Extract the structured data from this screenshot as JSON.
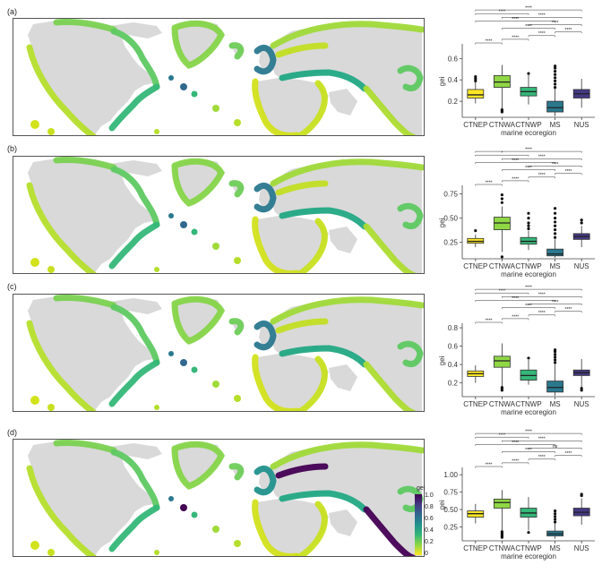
{
  "figure": {
    "panel_labels": [
      "(a)",
      "(b)",
      "(c)",
      "(d)"
    ],
    "legend": {
      "title": "gei",
      "ticks": [
        "1.0",
        "0.8",
        "0.6",
        "0.4",
        "0.2",
        "0"
      ]
    },
    "colors": {
      "CTNEP": "#fde725",
      "CTNWA": "#8fd744",
      "CTNWP": "#35b779",
      "MS": "#2a788e",
      "NUS": "#443983",
      "land": "#d9d9d9"
    }
  },
  "chart_data": [
    {
      "type": "box",
      "panel": "(a)",
      "xlabel": "marine ecoregion",
      "ylabel": "gei",
      "ylim": [
        0.05,
        0.72
      ],
      "yticks": [
        0.2,
        0.4,
        0.6
      ],
      "ytick_labels": [
        "0.2",
        "0.4",
        "0.6"
      ],
      "categories": [
        "CTNEP",
        "CTNWA",
        "CTNWP",
        "MS",
        "NUS"
      ],
      "boxes": [
        {
          "name": "CTNEP",
          "min": 0.18,
          "q1": 0.23,
          "median": 0.26,
          "q3": 0.31,
          "max": 0.38,
          "outliers": [
            0.39,
            0.41,
            0.43
          ]
        },
        {
          "name": "CTNWA",
          "min": 0.13,
          "q1": 0.33,
          "median": 0.38,
          "q3": 0.44,
          "max": 0.54,
          "outliers": [
            0.1,
            0.11,
            0.12
          ]
        },
        {
          "name": "CTNWP",
          "min": 0.17,
          "q1": 0.25,
          "median": 0.29,
          "q3": 0.33,
          "max": 0.45,
          "outliers": [
            0.46
          ]
        },
        {
          "name": "MS",
          "min": 0.06,
          "q1": 0.1,
          "median": 0.14,
          "q3": 0.2,
          "max": 0.32,
          "outliers": [
            0.33,
            0.36,
            0.39,
            0.42,
            0.45,
            0.48,
            0.51,
            0.53
          ]
        },
        {
          "name": "NUS",
          "min": 0.14,
          "q1": 0.23,
          "median": 0.27,
          "q3": 0.31,
          "max": 0.41,
          "outliers": []
        }
      ],
      "comparisons": [
        {
          "a": 0,
          "b": 1,
          "label": "****"
        },
        {
          "a": 1,
          "b": 2,
          "label": "****"
        },
        {
          "a": 2,
          "b": 3,
          "label": "****"
        },
        {
          "a": 3,
          "b": 4,
          "label": "****"
        },
        {
          "a": 1,
          "b": 3,
          "label": "****"
        },
        {
          "a": 2,
          "b": 4,
          "label": "****"
        },
        {
          "a": 0,
          "b": 3,
          "label": "****"
        },
        {
          "a": 1,
          "b": 4,
          "label": "****"
        },
        {
          "a": 0,
          "b": 2,
          "label": "****"
        },
        {
          "a": 0,
          "b": 4,
          "label": "****"
        }
      ]
    },
    {
      "type": "box",
      "panel": "(b)",
      "xlabel": "marine ecoregion",
      "ylabel": "gei",
      "ylim": [
        0.08,
        0.82
      ],
      "yticks": [
        0.25,
        0.5,
        0.75
      ],
      "ytick_labels": [
        "0.25",
        "0.50",
        "0.75"
      ],
      "categories": [
        "CTNEP",
        "CTNWA",
        "CTNWP",
        "MS",
        "NUS"
      ],
      "boxes": [
        {
          "name": "CTNEP",
          "min": 0.2,
          "q1": 0.24,
          "median": 0.26,
          "q3": 0.29,
          "max": 0.33,
          "outliers": [
            0.37
          ]
        },
        {
          "name": "CTNWA",
          "min": 0.15,
          "q1": 0.38,
          "median": 0.45,
          "q3": 0.51,
          "max": 0.62,
          "outliers": [
            0.1,
            0.66,
            0.7,
            0.74
          ]
        },
        {
          "name": "CTNWP",
          "min": 0.17,
          "q1": 0.23,
          "median": 0.26,
          "q3": 0.3,
          "max": 0.37,
          "outliers": [
            0.39,
            0.42,
            0.45,
            0.5,
            0.55
          ]
        },
        {
          "name": "MS",
          "min": 0.09,
          "q1": 0.11,
          "median": 0.13,
          "q3": 0.18,
          "max": 0.28,
          "outliers": [
            0.3,
            0.34,
            0.38,
            0.42,
            0.46,
            0.5,
            0.55,
            0.6
          ]
        },
        {
          "name": "NUS",
          "min": 0.2,
          "q1": 0.28,
          "median": 0.31,
          "q3": 0.34,
          "max": 0.42,
          "outliers": [
            0.45,
            0.48
          ]
        }
      ],
      "comparisons": [
        {
          "a": 0,
          "b": 1,
          "label": "****"
        },
        {
          "a": 1,
          "b": 2,
          "label": "****"
        },
        {
          "a": 2,
          "b": 3,
          "label": "****"
        },
        {
          "a": 3,
          "b": 4,
          "label": "****"
        },
        {
          "a": 1,
          "b": 3,
          "label": "****"
        },
        {
          "a": 2,
          "b": 4,
          "label": "****"
        },
        {
          "a": 0,
          "b": 3,
          "label": "****"
        },
        {
          "a": 1,
          "b": 4,
          "label": "****"
        },
        {
          "a": 0,
          "b": 2,
          "label": "*"
        },
        {
          "a": 0,
          "b": 4,
          "label": "****"
        }
      ]
    },
    {
      "type": "box",
      "panel": "(c)",
      "xlabel": "marine ecoregion",
      "ylabel": "gei",
      "ylim": [
        0.05,
        0.83
      ],
      "yticks": [
        0.2,
        0.4,
        0.6,
        0.8
      ],
      "ytick_labels": [
        "0.2",
        "0.4",
        "0.6",
        "0.8"
      ],
      "categories": [
        "CTNEP",
        "CTNWA",
        "CTNWP",
        "MS",
        "NUS"
      ],
      "boxes": [
        {
          "name": "CTNEP",
          "min": 0.2,
          "q1": 0.27,
          "median": 0.3,
          "q3": 0.33,
          "max": 0.39,
          "outliers": []
        },
        {
          "name": "CTNWA",
          "min": 0.16,
          "q1": 0.37,
          "median": 0.44,
          "q3": 0.49,
          "max": 0.63,
          "outliers": [
            0.12,
            0.14,
            0.15
          ]
        },
        {
          "name": "CTNWP",
          "min": 0.18,
          "q1": 0.23,
          "median": 0.28,
          "q3": 0.34,
          "max": 0.45,
          "outliers": [
            0.47
          ]
        },
        {
          "name": "MS",
          "min": 0.06,
          "q1": 0.1,
          "median": 0.15,
          "q3": 0.22,
          "max": 0.4,
          "outliers": [
            0.42,
            0.45,
            0.48,
            0.51,
            0.54,
            0.56
          ]
        },
        {
          "name": "NUS",
          "min": 0.15,
          "q1": 0.28,
          "median": 0.31,
          "q3": 0.34,
          "max": 0.46,
          "outliers": [
            0.12,
            0.14
          ]
        }
      ],
      "comparisons": [
        {
          "a": 0,
          "b": 1,
          "label": "****"
        },
        {
          "a": 1,
          "b": 2,
          "label": "****"
        },
        {
          "a": 2,
          "b": 3,
          "label": "****"
        },
        {
          "a": 3,
          "b": 4,
          "label": "****"
        },
        {
          "a": 1,
          "b": 3,
          "label": "****"
        },
        {
          "a": 2,
          "b": 4,
          "label": "****"
        },
        {
          "a": 0,
          "b": 3,
          "label": "****"
        },
        {
          "a": 1,
          "b": 4,
          "label": "****"
        },
        {
          "a": 0,
          "b": 2,
          "label": "****"
        },
        {
          "a": 0,
          "b": 4,
          "label": "****"
        }
      ]
    },
    {
      "type": "box",
      "panel": "(d)",
      "xlabel": "marine ecoregion",
      "ylabel": "gei",
      "ylim": [
        0.05,
        1.08
      ],
      "yticks": [
        0.25,
        0.5,
        0.75,
        1.0
      ],
      "ytick_labels": [
        "0.25",
        "0.50",
        "0.75",
        "1.00"
      ],
      "categories": [
        "CTNEP",
        "CTNWA",
        "CTNWP",
        "MS",
        "NUS"
      ],
      "boxes": [
        {
          "name": "CTNEP",
          "min": 0.3,
          "q1": 0.39,
          "median": 0.44,
          "q3": 0.48,
          "max": 0.58,
          "outliers": []
        },
        {
          "name": "CTNWA",
          "min": 0.2,
          "q1": 0.52,
          "median": 0.6,
          "q3": 0.65,
          "max": 0.78,
          "outliers": [
            0.1,
            0.12,
            0.14,
            0.16,
            0.18
          ]
        },
        {
          "name": "CTNWP",
          "min": 0.2,
          "q1": 0.39,
          "median": 0.45,
          "q3": 0.52,
          "max": 0.68,
          "outliers": [
            0.17
          ]
        },
        {
          "name": "MS",
          "min": 0.08,
          "q1": 0.12,
          "median": 0.15,
          "q3": 0.19,
          "max": 0.3,
          "outliers": [
            0.32,
            0.36,
            0.4,
            0.44,
            0.48
          ]
        },
        {
          "name": "NUS",
          "min": 0.28,
          "q1": 0.41,
          "median": 0.46,
          "q3": 0.52,
          "max": 0.66,
          "outliers": [
            0.7,
            0.72
          ]
        }
      ],
      "comparisons": [
        {
          "a": 0,
          "b": 1,
          "label": "****"
        },
        {
          "a": 1,
          "b": 2,
          "label": "****"
        },
        {
          "a": 2,
          "b": 3,
          "label": "****"
        },
        {
          "a": 3,
          "b": 4,
          "label": "****"
        },
        {
          "a": 1,
          "b": 3,
          "label": "****"
        },
        {
          "a": 2,
          "b": 4,
          "label": "ns"
        },
        {
          "a": 0,
          "b": 3,
          "label": "****"
        },
        {
          "a": 1,
          "b": 4,
          "label": "****"
        },
        {
          "a": 0,
          "b": 2,
          "label": "****"
        },
        {
          "a": 0,
          "b": 4,
          "label": "****"
        }
      ]
    }
  ]
}
